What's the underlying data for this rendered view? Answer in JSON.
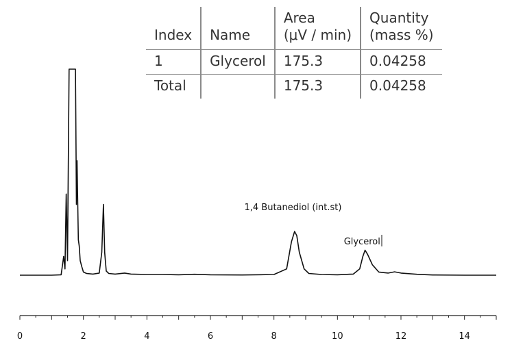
{
  "table": {
    "headers": {
      "index": "Index",
      "name": "Name",
      "area_line1": "Area",
      "area_line2": "(μV / min)",
      "quantity_line1": "Quantity",
      "quantity_line2": "(mass %)"
    },
    "rows": [
      {
        "index": "1",
        "name": "Glycerol",
        "area": "175.3",
        "quantity": "0.04258"
      },
      {
        "index": "Total",
        "name": "",
        "area": "175.3",
        "quantity": "0.04258"
      }
    ]
  },
  "chart_data": {
    "type": "line",
    "title": "",
    "xlabel": "",
    "ylabel": "",
    "xlim": [
      0,
      15
    ],
    "ylim": [
      0,
      100
    ],
    "x_ticks": [
      "0",
      "2",
      "4",
      "6",
      "8",
      "10",
      "12",
      "14"
    ],
    "grid": false,
    "annotations": [
      {
        "text": "1,4 Butanediol (int.st)",
        "x": 8.6
      },
      {
        "text": "Glycerol",
        "x": 10.85
      }
    ],
    "series": [
      {
        "x": [
          0,
          1.0,
          1.3,
          1.38,
          1.42,
          1.46,
          1.5,
          1.55,
          1.58,
          1.6,
          1.75,
          1.78,
          1.8,
          1.84,
          1.87,
          1.9,
          1.95,
          2.0,
          2.1,
          2.3,
          2.5,
          2.58,
          2.63,
          2.67,
          2.72,
          2.8,
          3.0,
          3.3,
          3.5,
          4.0,
          4.5,
          5.0,
          5.5,
          6.0,
          7.0,
          8.0,
          8.4,
          8.55,
          8.65,
          8.72,
          8.8,
          8.95,
          9.1,
          9.5,
          10.0,
          10.5,
          10.7,
          10.8,
          10.87,
          10.95,
          11.1,
          11.3,
          11.6,
          11.8,
          12.0,
          12.5,
          13.0,
          14.0,
          15.0
        ],
        "y": [
          1.0,
          1.0,
          1.2,
          10,
          4,
          40,
          8,
          100,
          100,
          100,
          100,
          35,
          56,
          18,
          15,
          8,
          5,
          2.5,
          1.8,
          1.5,
          2.0,
          12,
          35,
          12,
          3,
          1.8,
          1.5,
          2.0,
          1.5,
          1.3,
          1.3,
          1.2,
          1.4,
          1.2,
          1.1,
          1.3,
          4,
          17,
          22,
          20,
          12,
          4,
          1.8,
          1.3,
          1.2,
          1.5,
          4,
          10,
          13,
          11,
          6,
          2.5,
          2.0,
          2.6,
          2.0,
          1.4,
          1.1,
          1.0,
          1.0
        ]
      }
    ]
  }
}
